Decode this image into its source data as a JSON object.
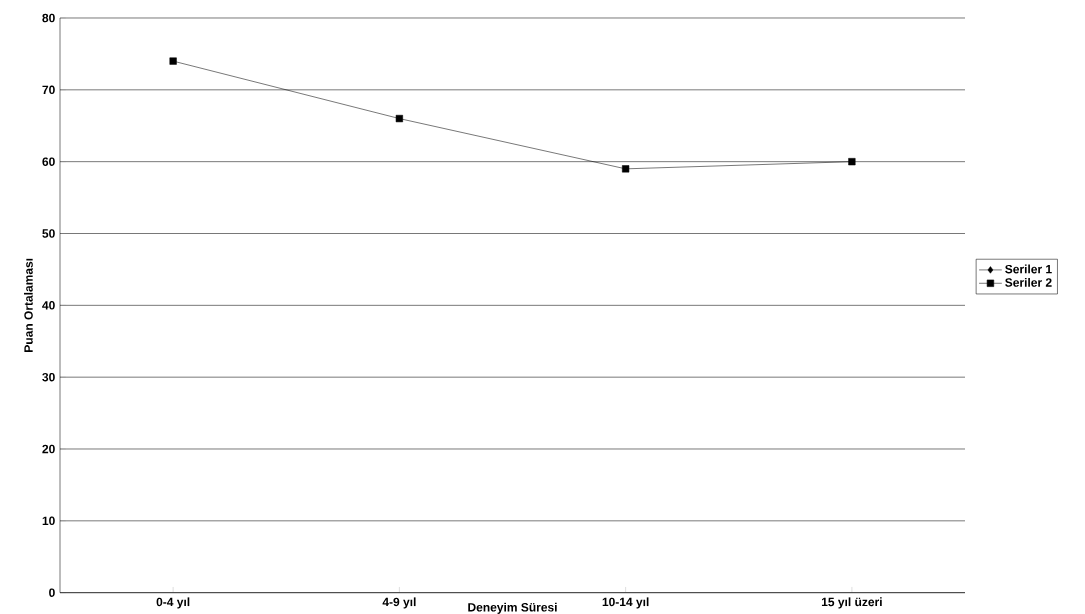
{
  "chart_data": {
    "type": "line",
    "xlabel": "Deneyim Süresi",
    "ylabel": "Puan Ortalaması",
    "categories": [
      "0-4 yıl",
      "4-9 yıl",
      "10-14 yıl",
      "15 yıl üzeri"
    ],
    "series": [
      {
        "name": "Seriler 1",
        "color": "#000000",
        "marker": "diamond",
        "values": [
          null,
          null,
          null,
          null
        ]
      },
      {
        "name": "Seriler 2",
        "color": "#000000",
        "marker": "square",
        "values": [
          74,
          66,
          59,
          60
        ]
      }
    ],
    "ylim": [
      0,
      80
    ],
    "yticks": [
      0,
      10,
      20,
      30,
      40,
      50,
      60,
      70,
      80
    ],
    "grid": "y",
    "legend": "right",
    "line_style": "solid"
  }
}
